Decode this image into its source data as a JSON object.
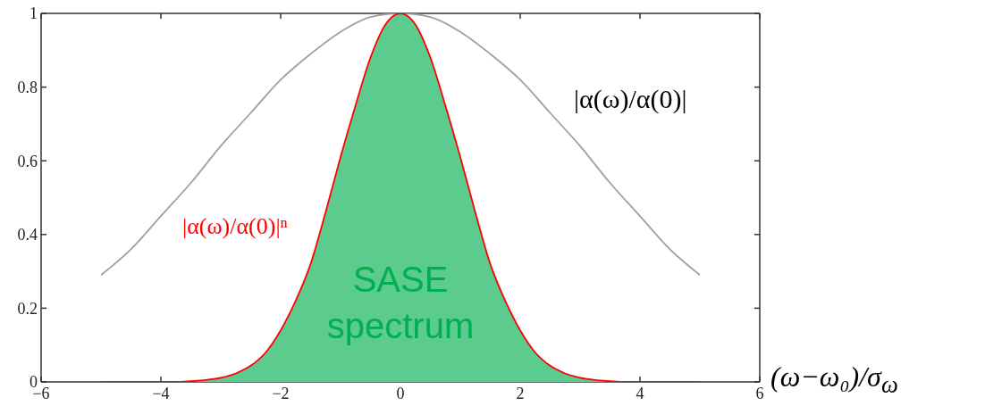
{
  "chart_data": {
    "type": "line",
    "xlabel": "(ω−ω₀)/σ$_{ω}$",
    "xlim": [
      -6,
      6
    ],
    "xticks": [
      {
        "value": -6,
        "label": "−6"
      },
      {
        "value": -4,
        "label": "−4"
      },
      {
        "value": -2,
        "label": "−2"
      },
      0,
      2,
      4,
      6
    ],
    "ylim": [
      0,
      1
    ],
    "yticks": [
      0,
      0.2,
      0.4,
      0.6,
      0.8,
      1
    ],
    "series": [
      {
        "name": "|α(ω)/α(0)|",
        "color": "#a0a0a0",
        "x": [
          -5,
          -4.5,
          -4,
          -3.5,
          -3,
          -2.5,
          -2,
          -1.5,
          -1,
          -0.5,
          0,
          0.5,
          1,
          1.5,
          2,
          2.5,
          3,
          3.5,
          4,
          4.5,
          5
        ],
        "values": [
          0.29,
          0.36,
          0.45,
          0.54,
          0.64,
          0.73,
          0.82,
          0.89,
          0.95,
          0.99,
          1,
          0.99,
          0.95,
          0.89,
          0.82,
          0.73,
          0.64,
          0.54,
          0.45,
          0.36,
          0.29
        ]
      },
      {
        "type": "area",
        "name": "SASE spectrum",
        "color": "#5ccb8e",
        "x": [
          -3.75,
          -3.5,
          -3.25,
          -3,
          -2.75,
          -2.5,
          -2.25,
          -2,
          -1.75,
          -1.5,
          -1.25,
          -1,
          -0.75,
          -0.5,
          -0.25,
          0,
          0.25,
          0.5,
          0.75,
          1,
          1.25,
          1.5,
          1.75,
          2,
          2.25,
          2.5,
          2.75,
          3,
          3.25,
          3.5,
          3.75
        ],
        "values": [
          0,
          0.002,
          0.005,
          0.011,
          0.023,
          0.044,
          0.08,
          0.14,
          0.22,
          0.32,
          0.46,
          0.61,
          0.75,
          0.88,
          0.97,
          1,
          0.97,
          0.88,
          0.75,
          0.61,
          0.46,
          0.32,
          0.22,
          0.14,
          0.08,
          0.044,
          0.023,
          0.011,
          0.005,
          0.002,
          0
        ]
      },
      {
        "name": "|α(ω)/α(0)|ⁿ",
        "color": "#ff0000",
        "x": [
          -5,
          -4.75,
          -4.5,
          -4.25,
          -4,
          -3.75,
          -3.5,
          -3.25,
          -3,
          -2.75,
          -2.5,
          -2.25,
          -2,
          -1.75,
          -1.5,
          -1.25,
          -1,
          -0.75,
          -0.5,
          -0.25,
          0,
          0.25,
          0.5,
          0.75,
          1,
          1.25,
          1.5,
          1.75,
          2,
          2.25,
          2.5,
          2.75,
          3,
          3.25,
          3.5,
          3.75,
          4,
          4.25,
          4.5,
          4.75,
          5
        ],
        "values": [
          0,
          0,
          0,
          0,
          0,
          0,
          0.002,
          0.005,
          0.011,
          0.023,
          0.044,
          0.08,
          0.14,
          0.22,
          0.32,
          0.46,
          0.61,
          0.75,
          0.88,
          0.97,
          1,
          0.97,
          0.88,
          0.75,
          0.61,
          0.46,
          0.32,
          0.22,
          0.14,
          0.08,
          0.044,
          0.023,
          0.011,
          0.005,
          0.002,
          0,
          0,
          0,
          0,
          0,
          0
        ]
      }
    ]
  }
}
